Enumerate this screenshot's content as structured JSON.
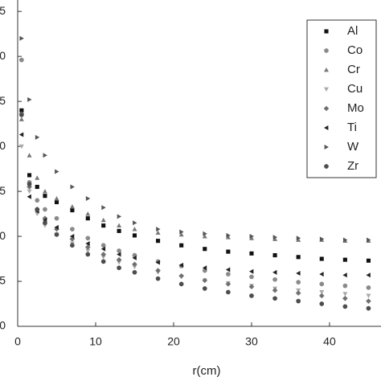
{
  "chart_data": {
    "type": "scatter",
    "xlabel": "r(cm)",
    "x": [
      0.5,
      1.5,
      2.5,
      3.5,
      5,
      7,
      9,
      11,
      13,
      15,
      18,
      21,
      24,
      27,
      30,
      33,
      36,
      39,
      42,
      45
    ],
    "series": [
      {
        "name": "Al",
        "color": "#111111",
        "marker": "square",
        "values": [
          2.4,
          1.68,
          1.55,
          1.45,
          1.38,
          1.29,
          1.2,
          1.12,
          1.06,
          1.01,
          0.95,
          0.9,
          0.86,
          0.83,
          0.81,
          0.79,
          0.77,
          0.75,
          0.74,
          0.73
        ]
      },
      {
        "name": "Co",
        "color": "#8a8a8a",
        "marker": "circle",
        "values": [
          2.96,
          1.6,
          1.4,
          1.3,
          1.2,
          1.08,
          0.98,
          0.9,
          0.84,
          0.79,
          0.72,
          0.67,
          0.62,
          0.58,
          0.55,
          0.52,
          0.49,
          0.47,
          0.45,
          0.43
        ]
      },
      {
        "name": "Cr",
        "color": "#777777",
        "marker": "triangle-up",
        "values": [
          2.3,
          1.9,
          1.65,
          1.5,
          1.42,
          1.33,
          1.25,
          1.18,
          1.12,
          1.08,
          1.04,
          1.02,
          1.0,
          0.99,
          0.98,
          0.97,
          0.96,
          0.96,
          0.95,
          0.95
        ]
      },
      {
        "name": "Cu",
        "color": "#aaaaaa",
        "marker": "triangle-down",
        "values": [
          2.0,
          1.5,
          1.25,
          1.12,
          1.02,
          0.92,
          0.84,
          0.77,
          0.71,
          0.66,
          0.6,
          0.55,
          0.51,
          0.48,
          0.45,
          0.42,
          0.4,
          0.38,
          0.36,
          0.34
        ]
      },
      {
        "name": "Mo",
        "color": "#707070",
        "marker": "diamond",
        "values": [
          2.36,
          1.55,
          1.3,
          1.2,
          1.08,
          0.97,
          0.88,
          0.8,
          0.74,
          0.69,
          0.62,
          0.56,
          0.51,
          0.47,
          0.44,
          0.4,
          0.37,
          0.34,
          0.31,
          0.28
        ]
      },
      {
        "name": "Ti",
        "color": "#222222",
        "marker": "triangle-left",
        "values": [
          2.13,
          1.44,
          1.28,
          1.18,
          1.1,
          1.0,
          0.92,
          0.86,
          0.8,
          0.76,
          0.71,
          0.68,
          0.65,
          0.63,
          0.61,
          0.6,
          0.59,
          0.58,
          0.57,
          0.57
        ]
      },
      {
        "name": "W",
        "color": "#555555",
        "marker": "triangle-right",
        "values": [
          3.2,
          2.52,
          2.1,
          1.9,
          1.72,
          1.55,
          1.42,
          1.32,
          1.22,
          1.15,
          1.08,
          1.05,
          1.03,
          1.01,
          1.0,
          0.99,
          0.98,
          0.97,
          0.96,
          0.96
        ]
      },
      {
        "name": "Zr",
        "color": "#4d4d4d",
        "marker": "circle",
        "values": [
          2.35,
          1.58,
          1.3,
          1.15,
          1.02,
          0.9,
          0.8,
          0.72,
          0.65,
          0.6,
          0.53,
          0.47,
          0.42,
          0.38,
          0.34,
          0.31,
          0.28,
          0.25,
          0.22,
          0.2
        ]
      }
    ],
    "xlim": [
      0,
      46.5
    ],
    "xticks": [
      0,
      10,
      20,
      30,
      40
    ],
    "ylim": [
      0,
      3.6
    ],
    "yticks": [
      0,
      {
        "value": 0.5,
        "label": "5"
      },
      {
        "value": 1.0,
        "label": "0"
      },
      {
        "value": 1.5,
        "label": "5"
      },
      {
        "value": 2.0,
        "label": "0"
      },
      {
        "value": 2.5,
        "label": "5"
      },
      {
        "value": 3.0,
        "label": "0"
      },
      {
        "value": 3.5,
        "label": "5"
      }
    ],
    "legend": "upper right"
  }
}
